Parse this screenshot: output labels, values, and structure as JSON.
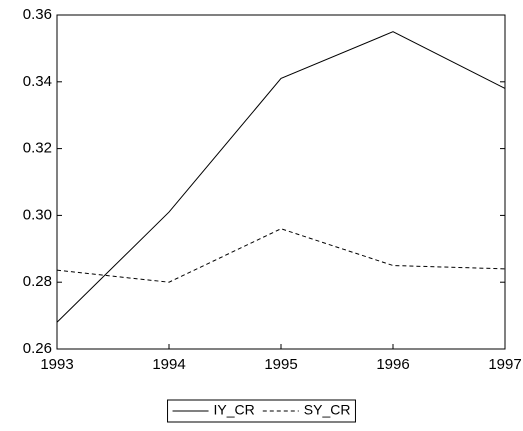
{
  "chart_data": {
    "type": "line",
    "x": [
      1993,
      1994,
      1995,
      1996,
      1997
    ],
    "series": [
      {
        "name": "IY_CR",
        "color": "#000000",
        "dash": "solid",
        "values": [
          0.268,
          0.301,
          0.341,
          0.355,
          0.338
        ]
      },
      {
        "name": "SY_CR",
        "color": "#000000",
        "dash": "dashed",
        "values": [
          0.2836,
          0.28,
          0.296,
          0.285,
          0.284
        ]
      }
    ],
    "xlim": [
      1993,
      1997
    ],
    "xticks": [
      1993,
      1994,
      1995,
      1996,
      1997
    ],
    "ylim": [
      0.26,
      0.36
    ],
    "yticks": [
      0.26,
      0.28,
      {
        "value": 0.3,
        "label": "0.30"
      },
      0.32,
      0.34,
      0.36
    ],
    "grid": false,
    "legend": "bottom"
  }
}
